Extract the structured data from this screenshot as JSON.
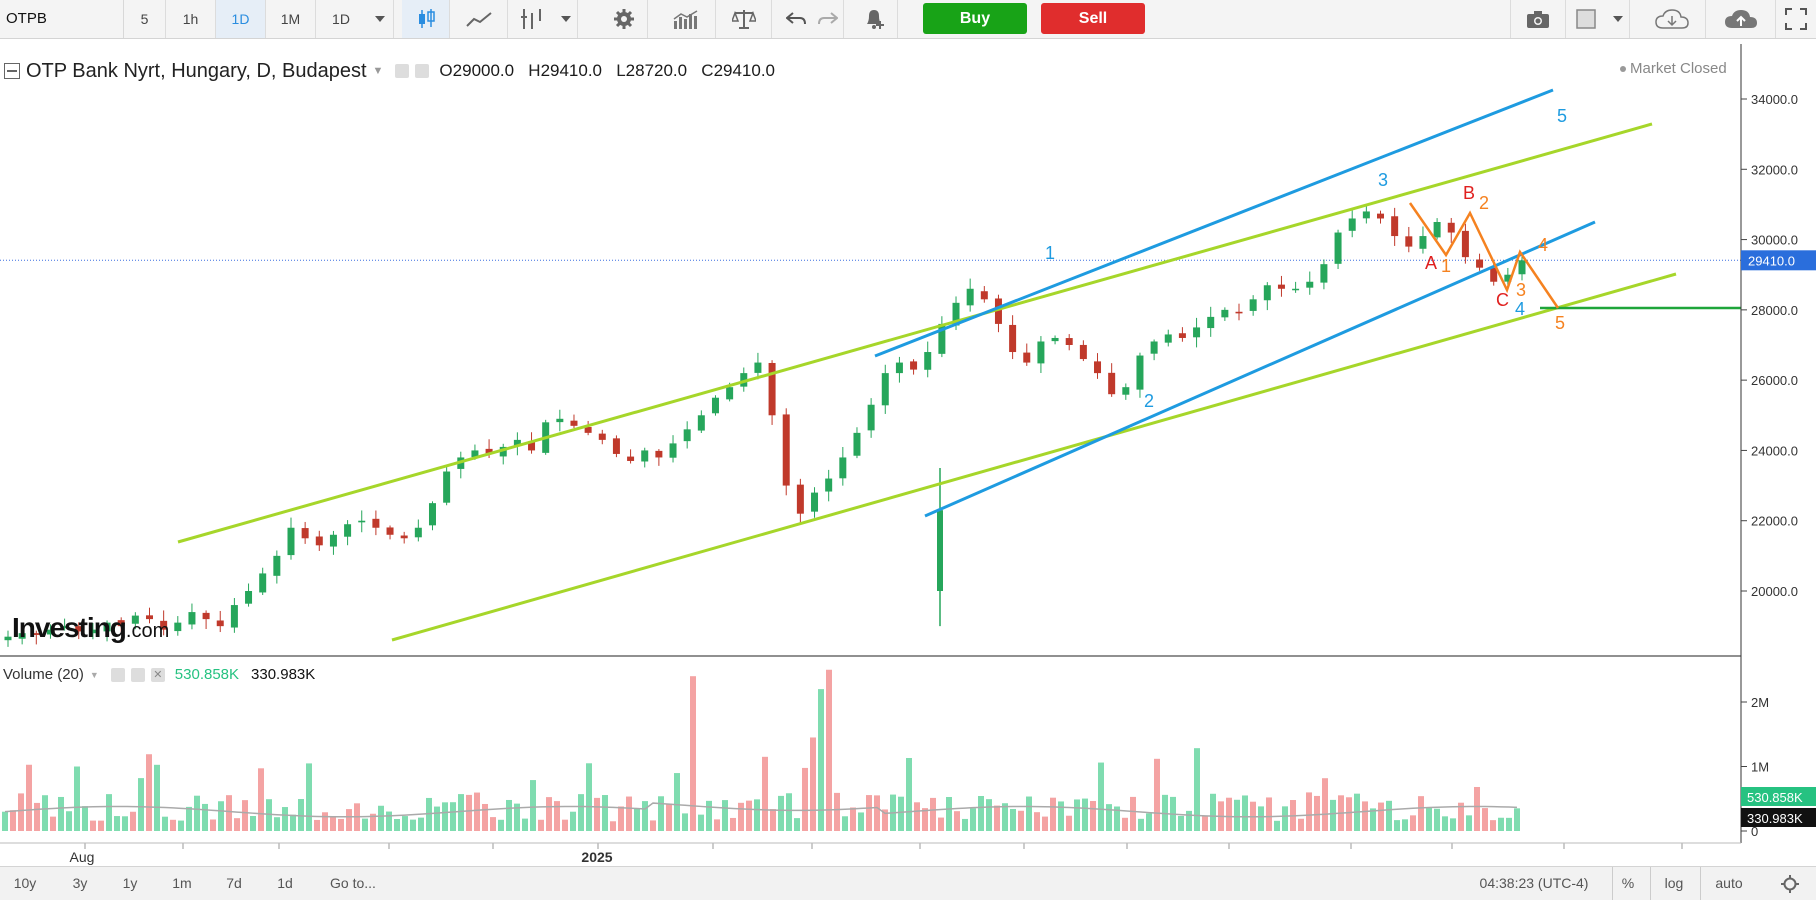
{
  "toolbar": {
    "symbol": "OTPB",
    "intervals": [
      "5",
      "1h",
      "1D",
      "1M",
      "1D"
    ],
    "active_interval_index": 2,
    "buy_label": "Buy",
    "sell_label": "Sell"
  },
  "legend": {
    "title": "OTP Bank Nyrt, Hungary, D, Budapest",
    "open_label": "O",
    "open": "29000.0",
    "high_label": "H",
    "high": "29410.0",
    "low_label": "L",
    "low": "28720.0",
    "close_label": "C",
    "close": "29410.0",
    "market_status": "Market Closed"
  },
  "volume_legend": {
    "title": "Volume (20)",
    "value1": "530.858K",
    "value2": "330.983K"
  },
  "logo": {
    "main": "Investing",
    "suffix": ".com"
  },
  "price_axis": {
    "ticks": [
      "34000.0",
      "32000.0",
      "30000.0",
      "28000.0",
      "26000.0",
      "24000.0",
      "22000.0",
      "20000.0"
    ],
    "current_label": "29410.0"
  },
  "volume_axis": {
    "ticks": [
      "2M",
      "1M",
      "0"
    ],
    "label_green": "530.858K",
    "label_black": "330.983K"
  },
  "time_axis": {
    "labels": [
      "Aug",
      "2025"
    ]
  },
  "bottombar": {
    "ranges": [
      "10y",
      "3y",
      "1y",
      "1m",
      "7d",
      "1d",
      "Go to..."
    ],
    "time": "04:38:23 (UTC-4)",
    "options": [
      "%",
      "log",
      "auto"
    ]
  },
  "colors": {
    "up": "#26a65b",
    "down": "#c0392b",
    "vol_up": "#7fdcb0",
    "vol_down": "#f4a3a3",
    "channel_lime": "#a6d62a",
    "channel_blue": "#1e9be0",
    "wave_orange": "#f58220",
    "wave_red": "#e0201f"
  },
  "chart_data": {
    "type": "candlestick",
    "title": "OTP Bank Nyrt, Hungary, D, Budapest",
    "ylim": [
      18500,
      35000
    ],
    "close_series_approx": [
      18700,
      18800,
      18750,
      18900,
      19000,
      18850,
      18900,
      19100,
      19000,
      19300,
      19200,
      18900,
      19100,
      19400,
      19200,
      19000,
      19600,
      20000,
      20500,
      21000,
      21800,
      21500,
      21300,
      21600,
      21900,
      22000,
      21800,
      21600,
      21500,
      21800,
      22500,
      23400,
      23800,
      24000,
      23900,
      24100,
      24300,
      24000,
      24800,
      24900,
      24700,
      24500,
      24300,
      23900,
      23700,
      24000,
      23800,
      24200,
      24600,
      25000,
      25500,
      25800,
      26200,
      26500,
      25000,
      23000,
      22200,
      22800,
      23200,
      23800,
      24500,
      25300,
      26200,
      26500,
      26300,
      26800,
      27600,
      28200,
      28600,
      28300,
      27600,
      26800,
      26500,
      27100,
      27200,
      27000,
      26600,
      26200,
      25600,
      25800,
      26700,
      27100,
      27300,
      27200,
      27500,
      27800,
      28000,
      27900,
      28300,
      28700,
      28600,
      28600,
      28800,
      29300,
      30200,
      30600,
      30800,
      30600,
      30100,
      29800,
      30100,
      30500,
      30200,
      29500,
      29200,
      28800,
      29000,
      29410
    ],
    "reference_line": 28000,
    "current_price": 29410,
    "wave_labels": [
      "1",
      "2",
      "3",
      "4",
      "5",
      "A",
      "B",
      "C",
      "1",
      "2",
      "3",
      "4",
      "5"
    ],
    "volume": {
      "max_label": "2M",
      "ma_values": [
        "530.858K",
        "330.983K"
      ]
    }
  }
}
